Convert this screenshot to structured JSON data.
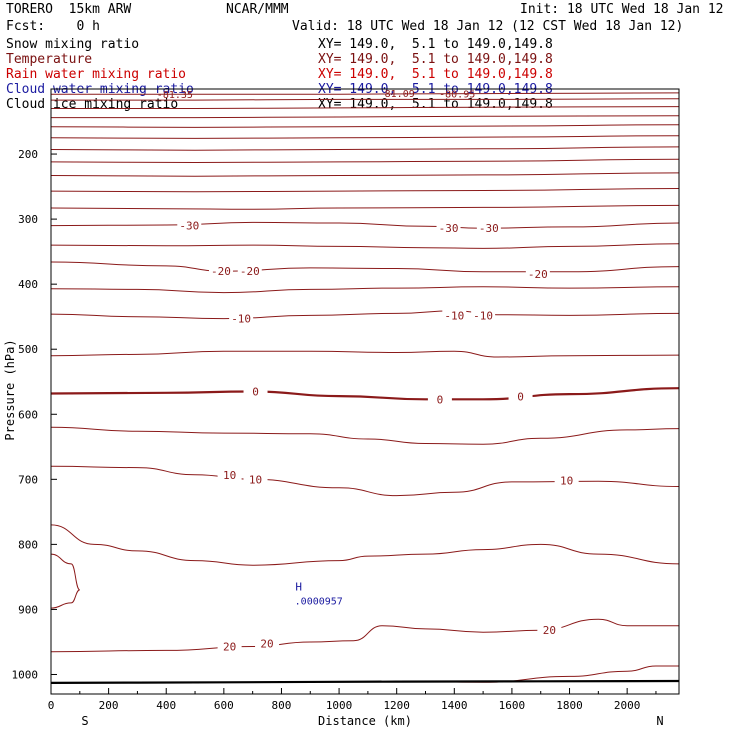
{
  "header": {
    "model": "TORERO  15km ARW",
    "center": "NCAR/MMM",
    "init": "Init: 18 UTC Wed 18 Jan 12",
    "fcst": "Fcst:    0 h",
    "valid": "Valid: 18 UTC Wed 18 Jan 12 (12 CST Wed 18 Jan 12)"
  },
  "fields": [
    {
      "name": "Snow mixing ratio",
      "xy": "",
      "color": "#000000"
    },
    {
      "name": "Temperature",
      "xy": "XY= 149.0,  5.1 to 149.0,149.8",
      "color": "#8b1a1a"
    },
    {
      "name": "Rain water mixing ratio",
      "xy": "XY= 149.0,  5.1 to 149.0,149.8",
      "color": "#cc0000"
    },
    {
      "name": "Cloud water mixing ratio",
      "xy": "XY= 149.0,  5.1 to 149.0,149.8",
      "color": "#1a1aa0"
    },
    {
      "name": "Cloud ice mixing ratio",
      "xy": "XY= 149.0,  5.1 to 149.0,149.8",
      "color": "#000000"
    }
  ],
  "snow_xy": "XY= 149.0,  5.1 to 149.0,149.8",
  "chart_data": {
    "type": "line",
    "xlabel": "Distance (km)",
    "ylabel": "Pressure (hPa)",
    "xlim": [
      0,
      2180
    ],
    "ylim": [
      100,
      1030
    ],
    "x_ticks": [
      0,
      200,
      400,
      600,
      800,
      1000,
      1200,
      1400,
      1600,
      1800,
      2000
    ],
    "y_ticks": [
      200,
      300,
      400,
      500,
      600,
      700,
      800,
      900,
      1000
    ],
    "ends": {
      "left": "S",
      "right": "N"
    },
    "marker": {
      "label": "H",
      "value": ".0000957",
      "x": 860,
      "p": 874
    },
    "contour_labels": [
      {
        "text": "-30",
        "x": 480,
        "p": 310
      },
      {
        "text": "-30",
        "x": 1380,
        "p": 314
      },
      {
        "text": "-30",
        "x": 1520,
        "p": 314
      },
      {
        "text": "-20",
        "x": 590,
        "p": 380
      },
      {
        "text": "-20",
        "x": 690,
        "p": 380
      },
      {
        "text": "-20",
        "x": 1690,
        "p": 384
      },
      {
        "text": "-10",
        "x": 660,
        "p": 453
      },
      {
        "text": "-10",
        "x": 1400,
        "p": 448
      },
      {
        "text": "-10",
        "x": 1500,
        "p": 448
      },
      {
        "text": "0",
        "x": 710,
        "p": 565
      },
      {
        "text": "0",
        "x": 1350,
        "p": 577
      },
      {
        "text": "0",
        "x": 1630,
        "p": 573
      },
      {
        "text": "10",
        "x": 620,
        "p": 693
      },
      {
        "text": "10",
        "x": 710,
        "p": 700
      },
      {
        "text": "10",
        "x": 1790,
        "p": 702
      },
      {
        "text": "20",
        "x": 620,
        "p": 957
      },
      {
        "text": "20",
        "x": 750,
        "p": 952
      },
      {
        "text": "20",
        "x": 1730,
        "p": 932
      }
    ],
    "top_labels": [
      {
        "text": "-81.35",
        "x": 430,
        "p": 108
      },
      {
        "text": "-81.09",
        "x": 1200,
        "p": 106
      },
      {
        "text": "-80.95",
        "x": 1410,
        "p": 107
      }
    ],
    "isotherms": [
      {
        "level": -80,
        "points": [
          [
            0,
            108
          ],
          [
            500,
            108
          ],
          [
            1000,
            108
          ],
          [
            1500,
            107
          ],
          [
            2180,
            106
          ]
        ]
      },
      {
        "level": -75,
        "points": [
          [
            0,
            117
          ],
          [
            500,
            117
          ],
          [
            1000,
            116
          ],
          [
            1500,
            116
          ],
          [
            2180,
            115
          ]
        ]
      },
      {
        "level": -70,
        "points": [
          [
            0,
            130
          ],
          [
            500,
            130
          ],
          [
            1000,
            129
          ],
          [
            1500,
            128
          ],
          [
            2180,
            127
          ]
        ]
      },
      {
        "level": -65,
        "points": [
          [
            0,
            144
          ],
          [
            500,
            144
          ],
          [
            1000,
            143
          ],
          [
            1500,
            142
          ],
          [
            2180,
            141
          ]
        ]
      },
      {
        "level": -60,
        "points": [
          [
            0,
            158
          ],
          [
            500,
            159
          ],
          [
            1000,
            158
          ],
          [
            1500,
            157
          ],
          [
            2180,
            155
          ]
        ]
      },
      {
        "level": -55,
        "points": [
          [
            0,
            175
          ],
          [
            500,
            176
          ],
          [
            1000,
            175
          ],
          [
            1500,
            174
          ],
          [
            2180,
            172
          ]
        ]
      },
      {
        "level": -50,
        "points": [
          [
            0,
            193
          ],
          [
            500,
            194
          ],
          [
            1000,
            193
          ],
          [
            1500,
            192
          ],
          [
            2180,
            189
          ]
        ]
      },
      {
        "level": -45,
        "points": [
          [
            0,
            212
          ],
          [
            500,
            213
          ],
          [
            1000,
            212
          ],
          [
            1500,
            211
          ],
          [
            2180,
            208
          ]
        ]
      },
      {
        "level": -40,
        "points": [
          [
            0,
            233
          ],
          [
            500,
            234
          ],
          [
            1000,
            233
          ],
          [
            1500,
            232
          ],
          [
            2180,
            229
          ]
        ]
      },
      {
        "level": -35,
        "points": [
          [
            0,
            257
          ],
          [
            500,
            258
          ],
          [
            1000,
            257
          ],
          [
            1500,
            256
          ],
          [
            2180,
            253
          ]
        ]
      },
      {
        "level": -30,
        "points": [
          [
            0,
            283
          ],
          [
            400,
            284
          ],
          [
            700,
            285
          ],
          [
            1000,
            283
          ],
          [
            1500,
            282
          ],
          [
            2180,
            279
          ]
        ]
      },
      {
        "level": -25,
        "points": [
          [
            0,
            310
          ],
          [
            400,
            309
          ],
          [
            700,
            305
          ],
          [
            1000,
            306
          ],
          [
            1300,
            311
          ],
          [
            1500,
            314
          ],
          [
            1800,
            312
          ],
          [
            2180,
            306
          ]
        ]
      },
      {
        "level": -20,
        "points": [
          [
            0,
            340
          ],
          [
            400,
            341
          ],
          [
            700,
            340
          ],
          [
            1000,
            342
          ],
          [
            1300,
            344
          ],
          [
            1500,
            345
          ],
          [
            1800,
            342
          ],
          [
            2180,
            338
          ]
        ]
      },
      {
        "level": -15,
        "points": [
          [
            0,
            366
          ],
          [
            400,
            372
          ],
          [
            600,
            380
          ],
          [
            900,
            375
          ],
          [
            1200,
            376
          ],
          [
            1500,
            381
          ],
          [
            1800,
            381
          ],
          [
            2180,
            373
          ]
        ]
      },
      {
        "level": -10,
        "points": [
          [
            0,
            407
          ],
          [
            300,
            408
          ],
          [
            600,
            413
          ],
          [
            900,
            408
          ],
          [
            1200,
            406
          ],
          [
            1500,
            404
          ],
          [
            1800,
            406
          ],
          [
            2180,
            404
          ]
        ]
      },
      {
        "level": -5,
        "points": [
          [
            0,
            446
          ],
          [
            300,
            450
          ],
          [
            600,
            453
          ],
          [
            900,
            448
          ],
          [
            1200,
            445
          ],
          [
            1400,
            441
          ],
          [
            1550,
            447
          ],
          [
            1800,
            448
          ],
          [
            2180,
            445
          ]
        ]
      },
      {
        "level": 0,
        "points": [
          [
            0,
            510
          ],
          [
            300,
            508
          ],
          [
            600,
            503
          ],
          [
            900,
            503
          ],
          [
            1200,
            505
          ],
          [
            1400,
            503
          ],
          [
            1550,
            512
          ],
          [
            1800,
            510
          ],
          [
            2180,
            509
          ]
        ]
      },
      {
        "level": 5,
        "points": [
          [
            0,
            568
          ],
          [
            400,
            567
          ],
          [
            700,
            565
          ],
          [
            1000,
            572
          ],
          [
            1300,
            577
          ],
          [
            1500,
            577
          ],
          [
            1800,
            569
          ],
          [
            2180,
            560
          ]
        ]
      },
      {
        "level": 10,
        "points": [
          [
            0,
            620
          ],
          [
            300,
            626
          ],
          [
            600,
            629
          ],
          [
            900,
            630
          ],
          [
            1100,
            638
          ],
          [
            1300,
            645
          ],
          [
            1500,
            646
          ],
          [
            1700,
            637
          ],
          [
            2000,
            624
          ],
          [
            2180,
            622
          ]
        ]
      },
      {
        "level": 15,
        "points": [
          [
            0,
            680
          ],
          [
            300,
            682
          ],
          [
            500,
            693
          ],
          [
            700,
            700
          ],
          [
            1000,
            713
          ],
          [
            1200,
            725
          ],
          [
            1400,
            720
          ],
          [
            1600,
            704
          ],
          [
            1900,
            703
          ],
          [
            2180,
            711
          ]
        ]
      },
      {
        "level": 20,
        "points": [
          [
            0,
            770
          ],
          [
            150,
            800
          ],
          [
            300,
            810
          ],
          [
            500,
            825
          ],
          [
            700,
            832
          ],
          [
            1000,
            825
          ],
          [
            1100,
            818
          ],
          [
            1300,
            815
          ],
          [
            1500,
            808
          ],
          [
            1700,
            800
          ],
          [
            1900,
            815
          ],
          [
            2180,
            830
          ]
        ]
      },
      {
        "level": 25,
        "points": [
          [
            0,
            815
          ],
          [
            70,
            830
          ],
          [
            100,
            870
          ],
          [
            70,
            890
          ],
          [
            0,
            898
          ]
        ]
      },
      {
        "level": 30,
        "points": [
          [
            0,
            965
          ],
          [
            400,
            963
          ],
          [
            700,
            957
          ],
          [
            900,
            950
          ],
          [
            1050,
            948
          ],
          [
            1150,
            925
          ],
          [
            1300,
            930
          ],
          [
            1500,
            935
          ],
          [
            1700,
            932
          ],
          [
            1900,
            915
          ],
          [
            2000,
            925
          ],
          [
            2180,
            925
          ]
        ]
      },
      {
        "level": 35,
        "points": [
          [
            1200,
            1010
          ],
          [
            1500,
            1012
          ],
          [
            1800,
            1003
          ],
          [
            2000,
            995
          ],
          [
            2100,
            987
          ],
          [
            2180,
            987
          ]
        ]
      },
      {
        "level": 40,
        "points": [
          [
            0,
            1013
          ],
          [
            600,
            1012
          ],
          [
            1200,
            1011
          ],
          [
            2180,
            1010
          ]
        ]
      }
    ]
  }
}
